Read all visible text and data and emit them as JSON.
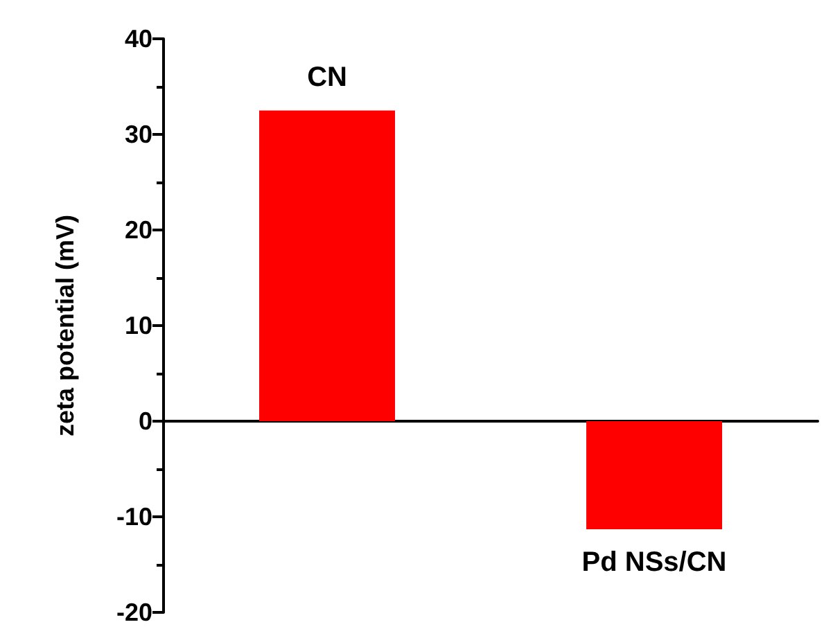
{
  "chart_data": {
    "type": "bar",
    "ylabel": "zeta potential (mV)",
    "categories": [
      "CN",
      "Pd NSs/CN"
    ],
    "values": [
      32.5,
      -11.3
    ],
    "color": "#ff0000",
    "ylim": [
      -20,
      40
    ],
    "yticks": [
      -20,
      -10,
      0,
      10,
      20,
      30,
      40
    ],
    "tick_labels": "y"
  }
}
